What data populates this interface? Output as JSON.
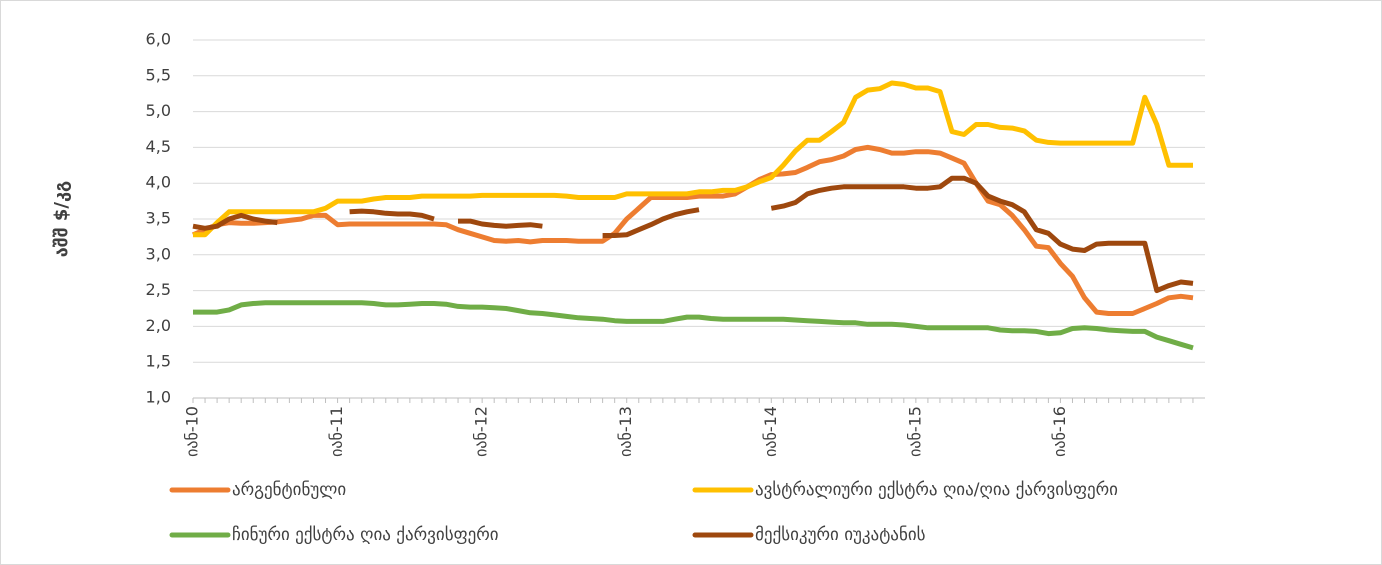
{
  "chart_data": {
    "type": "line",
    "ylabel": "აშშ $/კგ",
    "categories": [
      "იან-10",
      null,
      null,
      null,
      null,
      null,
      null,
      null,
      null,
      null,
      null,
      null,
      "იან-11",
      null,
      null,
      null,
      null,
      null,
      null,
      null,
      null,
      null,
      null,
      null,
      "იან-12",
      null,
      null,
      null,
      null,
      null,
      null,
      null,
      null,
      null,
      null,
      null,
      "იან-13",
      null,
      null,
      null,
      null,
      null,
      null,
      null,
      null,
      null,
      null,
      null,
      "იან-14",
      null,
      null,
      null,
      null,
      null,
      null,
      null,
      null,
      null,
      null,
      null,
      "იან-15",
      null,
      null,
      null,
      null,
      null,
      null,
      null,
      null,
      null,
      null,
      null,
      "იან-16",
      null,
      null,
      null,
      null,
      null,
      null,
      null,
      null,
      null,
      null,
      null
    ],
    "ylim": [
      1,
      6
    ],
    "yticks": [
      {
        "value": 1,
        "label": "1,0"
      },
      {
        "value": 1.5,
        "label": "1,5"
      },
      {
        "value": 2,
        "label": "2,0"
      },
      {
        "value": 2.5,
        "label": "2,5"
      },
      {
        "value": 3,
        "label": "3,0"
      },
      {
        "value": 3.5,
        "label": "3,5"
      },
      {
        "value": 4,
        "label": "4,0"
      },
      {
        "value": 4.5,
        "label": "4,5"
      },
      {
        "value": 5,
        "label": "5,0"
      },
      {
        "value": 5.5,
        "label": "5,5"
      },
      {
        "value": 6,
        "label": "6,0"
      }
    ],
    "grid": true,
    "series": [
      {
        "name": "არგენტინული",
        "color": "#ed7d31",
        "values": [
          3.28,
          3.35,
          3.42,
          3.45,
          3.44,
          3.44,
          3.45,
          3.46,
          3.48,
          3.5,
          3.55,
          3.55,
          3.42,
          3.43,
          3.43,
          3.43,
          3.43,
          3.43,
          3.43,
          3.43,
          3.43,
          3.42,
          3.35,
          3.3,
          3.25,
          3.2,
          3.19,
          3.2,
          3.18,
          3.2,
          3.2,
          3.2,
          3.19,
          3.19,
          3.19,
          3.3,
          3.5,
          3.65,
          3.8,
          3.8,
          3.8,
          3.8,
          3.82,
          3.82,
          3.82,
          3.85,
          3.95,
          4.05,
          4.12,
          4.13,
          4.15,
          4.22,
          4.3,
          4.33,
          4.38,
          4.47,
          4.5,
          4.47,
          4.42,
          4.42,
          4.44,
          4.44,
          4.42,
          4.35,
          4.28,
          4.0,
          3.75,
          3.7,
          3.55,
          3.35,
          3.12,
          3.1,
          2.88,
          2.7,
          2.4,
          2.2,
          2.18,
          2.18,
          2.18,
          2.25,
          2.32,
          2.4,
          2.42,
          2.4
        ]
      },
      {
        "name": "ავსტრალიური ექსტრა ღია/ღია ქარვისფერი",
        "color": "#ffc000",
        "values": [
          3.28,
          3.28,
          3.45,
          3.6,
          3.6,
          3.6,
          3.6,
          3.6,
          3.6,
          3.6,
          3.6,
          3.65,
          3.75,
          3.75,
          3.75,
          3.78,
          3.8,
          3.8,
          3.8,
          3.82,
          3.82,
          3.82,
          3.82,
          3.82,
          3.83,
          3.83,
          3.83,
          3.83,
          3.83,
          3.83,
          3.83,
          3.82,
          3.8,
          3.8,
          3.8,
          3.8,
          3.85,
          3.85,
          3.85,
          3.85,
          3.85,
          3.85,
          3.88,
          3.88,
          3.9,
          3.9,
          3.95,
          4.02,
          4.08,
          4.25,
          4.45,
          4.6,
          4.6,
          4.72,
          4.85,
          5.2,
          5.3,
          5.32,
          5.4,
          5.38,
          5.33,
          5.33,
          5.28,
          4.72,
          4.68,
          4.82,
          4.82,
          4.78,
          4.77,
          4.73,
          4.6,
          4.57,
          4.56,
          4.56,
          4.56,
          4.56,
          4.56,
          4.56,
          4.56,
          5.2,
          4.82,
          4.25,
          4.25,
          4.25
        ]
      },
      {
        "name": "ჩინური ექსტრა ღია ქარვისფერი",
        "color": "#70ad47",
        "values": [
          2.2,
          2.2,
          2.2,
          2.23,
          2.3,
          2.32,
          2.33,
          2.33,
          2.33,
          2.33,
          2.33,
          2.33,
          2.33,
          2.33,
          2.33,
          2.32,
          2.3,
          2.3,
          2.31,
          2.32,
          2.32,
          2.31,
          2.28,
          2.27,
          2.27,
          2.26,
          2.25,
          2.22,
          2.19,
          2.18,
          2.16,
          2.14,
          2.12,
          2.11,
          2.1,
          2.08,
          2.07,
          2.07,
          2.07,
          2.07,
          2.1,
          2.13,
          2.13,
          2.11,
          2.1,
          2.1,
          2.1,
          2.1,
          2.1,
          2.1,
          2.09,
          2.08,
          2.07,
          2.06,
          2.05,
          2.05,
          2.03,
          2.03,
          2.03,
          2.02,
          2.0,
          1.98,
          1.98,
          1.98,
          1.98,
          1.98,
          1.98,
          1.95,
          1.94,
          1.94,
          1.93,
          1.9,
          1.91,
          1.97,
          1.98,
          1.97,
          1.95,
          1.94,
          1.93,
          1.93,
          1.85,
          1.8,
          1.75,
          1.7
        ]
      },
      {
        "name": "მექსიკური იუკატანის",
        "color": "#9e480e",
        "values": [
          3.4,
          3.37,
          3.4,
          3.5,
          3.55,
          3.5,
          3.47,
          3.45,
          null,
          null,
          null,
          null,
          null,
          3.6,
          3.61,
          3.6,
          3.58,
          3.57,
          3.57,
          3.55,
          3.5,
          null,
          3.47,
          3.47,
          3.43,
          3.41,
          3.4,
          3.41,
          3.42,
          3.4,
          null,
          null,
          null,
          null,
          3.27,
          3.27,
          3.28,
          3.35,
          3.42,
          3.5,
          3.56,
          3.6,
          3.63,
          null,
          null,
          null,
          null,
          null,
          3.65,
          3.68,
          3.73,
          3.85,
          3.9,
          3.93,
          3.95,
          3.95,
          3.95,
          3.95,
          3.95,
          3.95,
          3.93,
          3.93,
          3.95,
          4.07,
          4.07,
          4.0,
          3.82,
          3.75,
          3.7,
          3.6,
          3.35,
          3.3,
          3.15,
          3.08,
          3.06,
          3.15,
          3.16,
          3.16,
          3.16,
          3.16,
          2.5,
          2.57,
          2.62,
          2.6
        ]
      }
    ]
  }
}
